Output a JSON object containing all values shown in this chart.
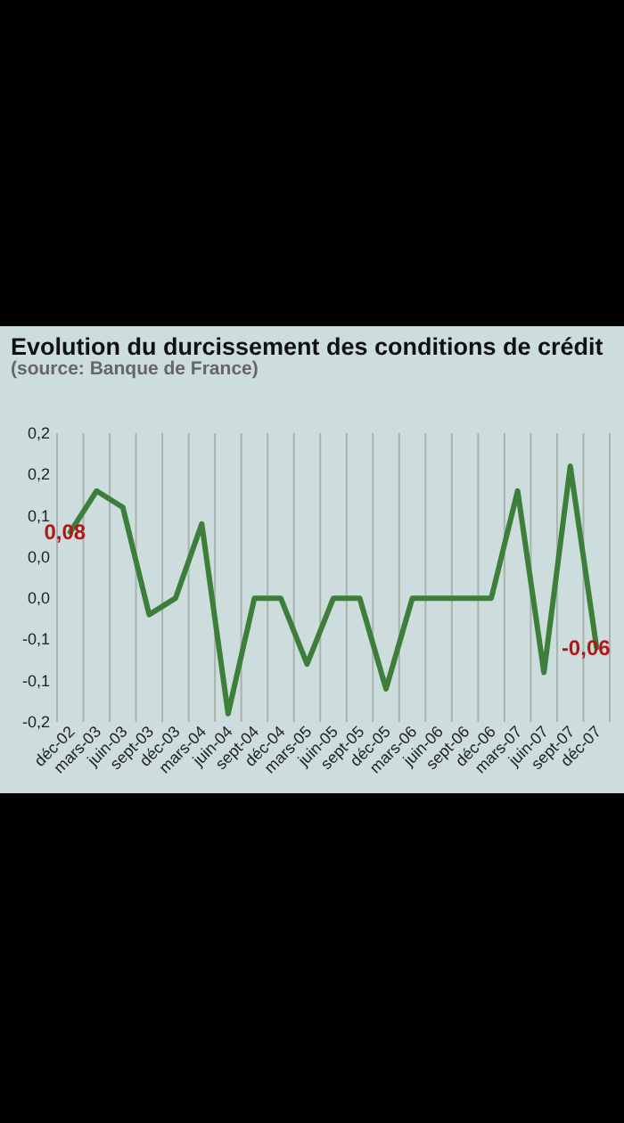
{
  "chart_data": {
    "type": "line",
    "title": "Evolution du durcissement des conditions de crédit",
    "subtitle": "(source: Banque de France)",
    "categories": [
      "déc-02",
      "mars-03",
      "juin-03",
      "sept-03",
      "déc-03",
      "mars-04",
      "juin-04",
      "sept-04",
      "déc-04",
      "mars-05",
      "juin-05",
      "sept-05",
      "déc-05",
      "mars-06",
      "juin-06",
      "sept-06",
      "déc-06",
      "mars-07",
      "juin-07",
      "sept-07",
      "déc-07"
    ],
    "series": [
      {
        "color": "#3d7f3a",
        "values": [
          0.08,
          0.13,
          0.11,
          -0.02,
          0,
          0.09,
          -0.14,
          0,
          0,
          -0.08,
          0,
          0,
          -0.11,
          0,
          0,
          0,
          0,
          0.13,
          -0.09,
          0.16,
          -0.06
        ],
        "value_labels": [
          "0,08",
          null,
          null,
          null,
          null,
          null,
          null,
          null,
          null,
          null,
          null,
          null,
          null,
          null,
          null,
          null,
          null,
          null,
          null,
          null,
          "-0,06"
        ]
      }
    ],
    "ylim": [
      -0.15,
      0.2
    ],
    "yticks": [
      {
        "value": 0.2,
        "label": "0,2"
      },
      {
        "value": 0.15,
        "label": "0,2"
      },
      {
        "value": 0.1,
        "label": "0,1"
      },
      {
        "value": 0.05,
        "label": "0,0"
      },
      {
        "value": 0,
        "label": "0,0"
      },
      {
        "value": -0.05,
        "label": "-0,1"
      },
      {
        "value": -0.1,
        "label": "-0,1"
      },
      {
        "value": -0.15,
        "label": "-0,2"
      }
    ],
    "grid": "x",
    "line_style": "solid",
    "marker": "none"
  }
}
